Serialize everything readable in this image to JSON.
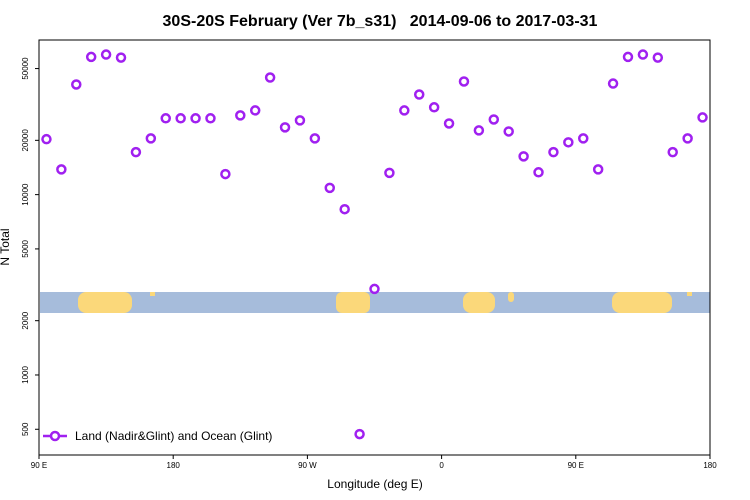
{
  "chart_data": {
    "type": "scatter",
    "title": "30S-20S February (Ver 7b_s31)   2014-09-06 to 2017-03-31",
    "x_label": "Longitude (deg E)",
    "y_label": "N Total",
    "xlim": [
      90,
      540
    ],
    "xticks": [
      {
        "value": 90,
        "label": "90 E"
      },
      180,
      {
        "value": 270,
        "label": "90 W"
      },
      {
        "value": 360,
        "label": "0"
      },
      {
        "value": 450,
        "label": "90 E"
      },
      {
        "value": 540,
        "label": "180"
      }
    ],
    "ylim": [
      360,
      72000
    ],
    "yticks": [
      500,
      1000,
      2000,
      5000,
      10000,
      20000,
      50000
    ],
    "log_y": true,
    "legend": "bottom left",
    "series": [
      {
        "name": "Land (Nadir&Glint) and Ocean (Glint)",
        "color": "#a020f0",
        "x": [
          95,
          105,
          115,
          125,
          135,
          145,
          155,
          165,
          175,
          185,
          195,
          205,
          215,
          225,
          235,
          245,
          255,
          265,
          275,
          285,
          295,
          305,
          315,
          325,
          335,
          345,
          355,
          365,
          375,
          385,
          395,
          405,
          415,
          425,
          435,
          445,
          455,
          465,
          475,
          485,
          495,
          505,
          515,
          525,
          535
        ],
        "values": [
          20300,
          13800,
          40800,
          58000,
          59800,
          57500,
          17200,
          20500,
          26500,
          26500,
          26500,
          26500,
          13000,
          27500,
          29300,
          44600,
          23600,
          25800,
          20500,
          10900,
          8300,
          470,
          3000,
          13200,
          29300,
          35900,
          30500,
          24800,
          42400,
          22700,
          26100,
          22400,
          16300,
          13300,
          17200,
          19500,
          20500,
          13800,
          41300,
          58000,
          59800,
          57500,
          17200,
          20500,
          26800
        ]
      }
    ]
  }
}
